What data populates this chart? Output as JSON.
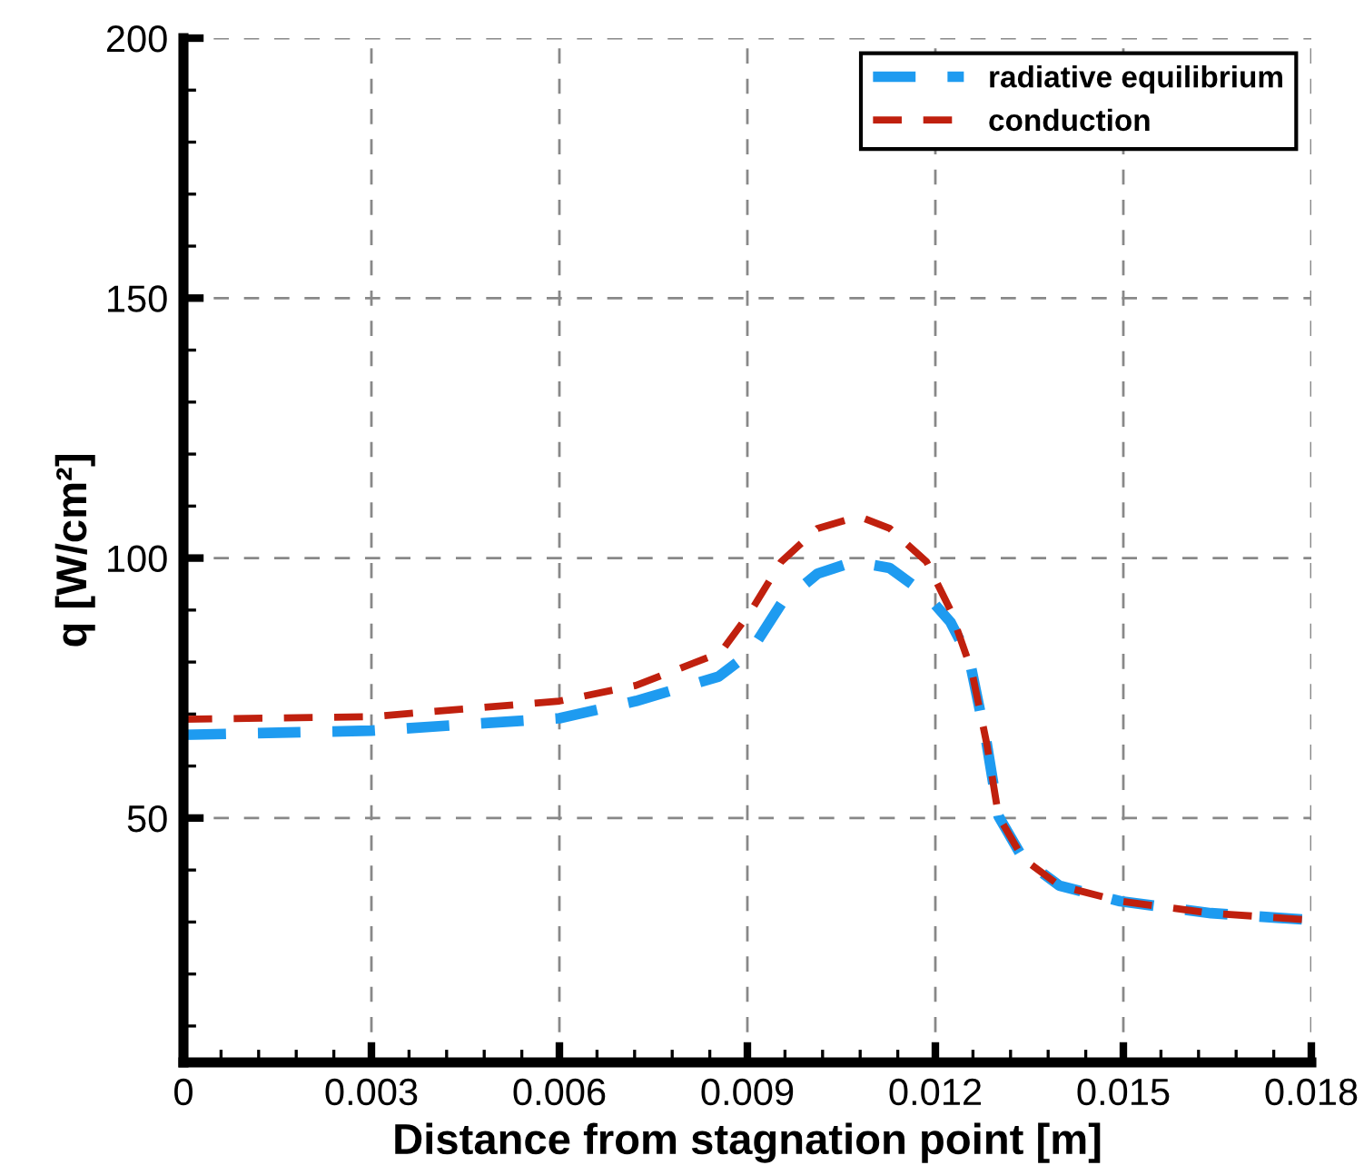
{
  "chart_data": {
    "type": "line",
    "xlabel": "Distance from stagnation point [m]",
    "ylabel": "q [W/cm²]",
    "xlim": [
      0,
      0.018
    ],
    "xticks": [
      0,
      0.003,
      0.006,
      0.009,
      0.012,
      0.015,
      0.018
    ],
    "ylim": [
      3,
      200
    ],
    "yticks": [
      50,
      100,
      150,
      200
    ],
    "grid": true,
    "legend": "top right",
    "line_style": "dashed",
    "marker": "none",
    "series": [
      {
        "name": "radiative equilibrium",
        "color": "#1e9bf0",
        "x": [
          0,
          0.003,
          0.006,
          0.00722,
          0.00854,
          0.00904,
          0.00954,
          0.01012,
          0.0107,
          0.01127,
          0.01186,
          0.01224,
          0.01254,
          0.01282,
          0.01301,
          0.0134,
          0.01398,
          0.01495,
          0.0164,
          0.01785
        ],
        "values": [
          66,
          66.8,
          69.2,
          72.5,
          77.2,
          81.8,
          91.2,
          97,
          99.3,
          98.1,
          92.9,
          87.7,
          80.7,
          64.3,
          50.3,
          42.2,
          37,
          34,
          31.7,
          30.5
        ]
      },
      {
        "name": "conduction",
        "color": "#c0200e",
        "x": [
          0,
          0.003,
          0.006,
          0.00722,
          0.00857,
          0.00904,
          0.00954,
          0.01012,
          0.01078,
          0.01127,
          0.01186,
          0.01224,
          0.01258,
          0.01282,
          0.01301,
          0.0134,
          0.01398,
          0.01495,
          0.0164,
          0.01785
        ],
        "values": [
          69,
          69.5,
          72.5,
          75.5,
          81.8,
          89.5,
          99.3,
          105.7,
          108,
          105.7,
          99.3,
          90,
          78.3,
          64.3,
          50.3,
          42.2,
          37,
          34,
          31.7,
          30.5
        ]
      }
    ]
  }
}
